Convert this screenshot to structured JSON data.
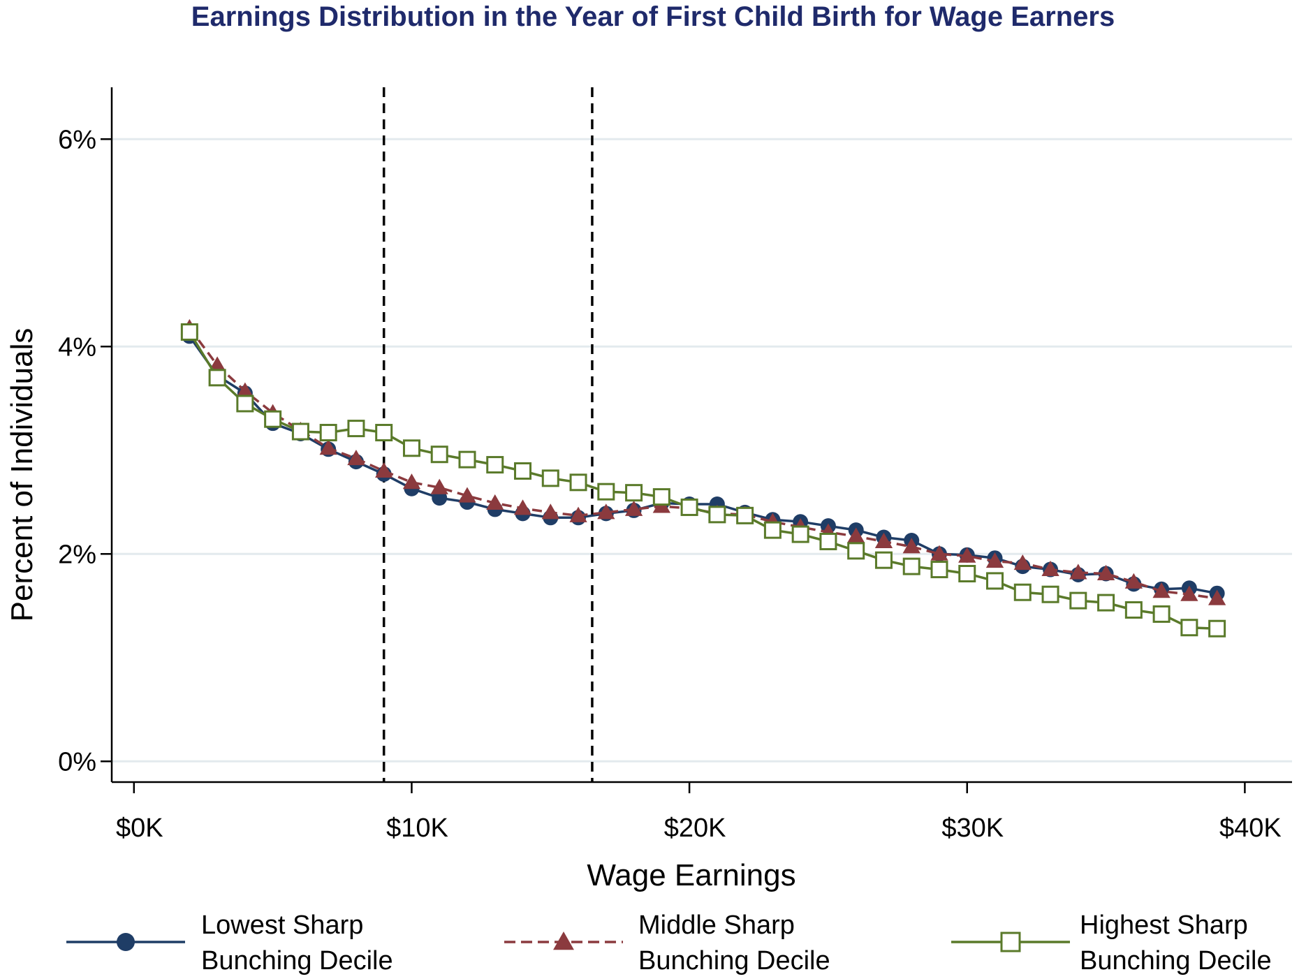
{
  "chart_data": {
    "type": "line",
    "title": "Earnings Distribution in the Year of First Child Birth for Wage Earners",
    "xlabel": "Wage Earnings",
    "ylabel": "Percent of Individuals",
    "xlim": [
      -0.8,
      41.7
    ],
    "ylim": [
      -0.2,
      6.5
    ],
    "x_ticks": [
      {
        "value": 0,
        "label": "$0K"
      },
      {
        "value": 10,
        "label": "$10K"
      },
      {
        "value": 20,
        "label": "$20K"
      },
      {
        "value": 30,
        "label": "$30K"
      },
      {
        "value": 40,
        "label": "$40K"
      }
    ],
    "y_ticks": [
      {
        "value": 0,
        "label": "0%"
      },
      {
        "value": 2,
        "label": "2%"
      },
      {
        "value": 4,
        "label": "4%"
      },
      {
        "value": 6,
        "label": "6%"
      }
    ],
    "grid": "horizontal",
    "reference_lines_x": [
      9,
      16.5
    ],
    "x": [
      2,
      3,
      4,
      5,
      6,
      7,
      8,
      9,
      10,
      11,
      12,
      13,
      14,
      15,
      16,
      17,
      18,
      19,
      20,
      21,
      22,
      23,
      24,
      25,
      26,
      27,
      28,
      29,
      30,
      31,
      32,
      33,
      34,
      35,
      36,
      37,
      38,
      39
    ],
    "series": [
      {
        "name": "Lowest Sharp Bunching Decile",
        "color": "#1f3d66",
        "marker": "circle",
        "line": "solid",
        "values": [
          4.1,
          3.72,
          3.55,
          3.26,
          3.16,
          3.01,
          2.89,
          2.77,
          2.63,
          2.54,
          2.5,
          2.43,
          2.39,
          2.35,
          2.35,
          2.39,
          2.42,
          2.49,
          2.48,
          2.48,
          2.4,
          2.33,
          2.31,
          2.27,
          2.23,
          2.16,
          2.13,
          2.0,
          1.99,
          1.96,
          1.88,
          1.85,
          1.8,
          1.81,
          1.71,
          1.66,
          1.67,
          1.62
        ]
      },
      {
        "name": "Middle Sharp Bunching Decile",
        "color": "#8b3a3e",
        "marker": "triangle",
        "line": "dashed",
        "values": [
          4.18,
          3.82,
          3.57,
          3.36,
          3.19,
          3.02,
          2.92,
          2.8,
          2.69,
          2.64,
          2.56,
          2.49,
          2.44,
          2.4,
          2.37,
          2.4,
          2.43,
          2.46,
          2.44,
          2.39,
          2.38,
          2.31,
          2.26,
          2.21,
          2.17,
          2.12,
          2.07,
          2.0,
          1.98,
          1.93,
          1.91,
          1.85,
          1.82,
          1.81,
          1.73,
          1.64,
          1.61,
          1.57
        ]
      },
      {
        "name": "Highest Sharp Bunching Decile",
        "color": "#5a7a2a",
        "marker": "square",
        "line": "solid",
        "values": [
          4.14,
          3.7,
          3.45,
          3.3,
          3.18,
          3.17,
          3.21,
          3.17,
          3.02,
          2.96,
          2.91,
          2.86,
          2.8,
          2.73,
          2.69,
          2.6,
          2.59,
          2.55,
          2.45,
          2.38,
          2.37,
          2.23,
          2.19,
          2.12,
          2.03,
          1.94,
          1.88,
          1.85,
          1.81,
          1.74,
          1.63,
          1.61,
          1.55,
          1.53,
          1.46,
          1.42,
          1.29,
          1.28
        ]
      }
    ],
    "legend": {
      "placement": "bottom",
      "items": [
        {
          "line1": "Lowest Sharp",
          "line2": "Bunching Decile"
        },
        {
          "line1": "Middle Sharp",
          "line2": "Bunching Decile"
        },
        {
          "line1": "Highest Sharp",
          "line2": "Bunching Decile"
        }
      ]
    }
  }
}
